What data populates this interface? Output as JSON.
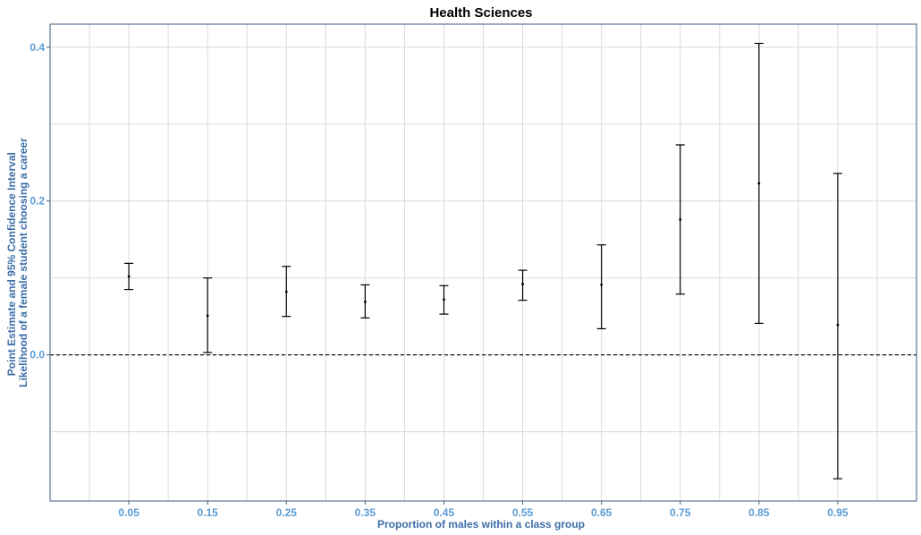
{
  "chart_data": {
    "type": "errorbar",
    "title": "Health Sciences",
    "xlabel": "Proportion of males within a class group",
    "ylabel_lines": [
      "Point Estimate and 95% Confidence Interval",
      "Likelihood of a female student choosing a career"
    ],
    "x": [
      0.05,
      0.15,
      0.25,
      0.35,
      0.45,
      0.55,
      0.65,
      0.75,
      0.85,
      0.95
    ],
    "x_tick_labels": [
      "0.05",
      "0.15",
      "0.25",
      "0.35",
      "0.45",
      "0.55",
      "0.65",
      "0.75",
      "0.85",
      "0.95"
    ],
    "estimate": [
      0.102,
      0.051,
      0.082,
      0.069,
      0.072,
      0.092,
      0.091,
      0.176,
      0.223,
      0.039
    ],
    "lower": [
      0.085,
      0.003,
      0.05,
      0.048,
      0.053,
      0.071,
      0.034,
      0.079,
      0.041,
      -0.161
    ],
    "upper": [
      0.119,
      0.1,
      0.115,
      0.091,
      0.09,
      0.11,
      0.143,
      0.273,
      0.405,
      0.236
    ],
    "y_ticks": [
      0.0,
      0.2,
      0.4
    ],
    "y_tick_labels": [
      "0.0",
      "0.2",
      "0.4"
    ],
    "xlim": [
      -0.05,
      1.05
    ],
    "ylim": [
      -0.19,
      0.43
    ],
    "reference_line": {
      "y": 0,
      "style": "dashed"
    },
    "grid": true,
    "colors": {
      "errorbar": "#000000",
      "axis_title": "#3d6ea8",
      "tick_label": "#5b9bd5",
      "frame": "#3d5a80",
      "grid": "#d9d9d9"
    }
  }
}
